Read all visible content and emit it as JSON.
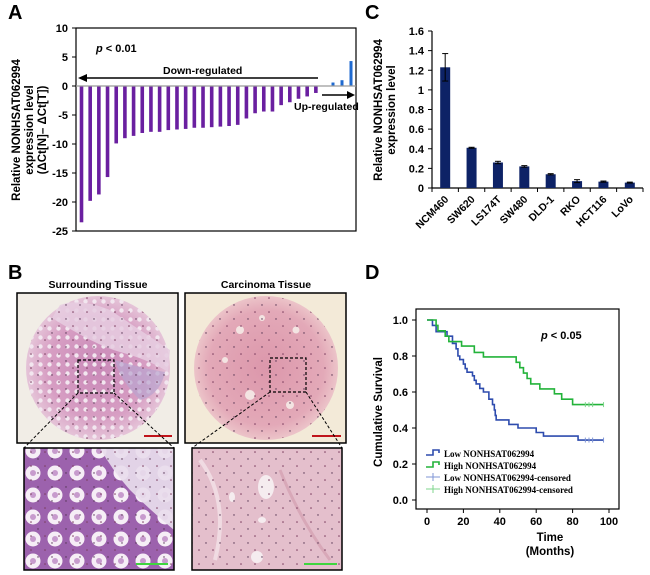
{
  "panels": {
    "A": {
      "letter": "A"
    },
    "B": {
      "letter": "B",
      "left_title": "Surrounding Tissue",
      "right_title": "Carcinoma Tissue"
    },
    "C": {
      "letter": "C"
    },
    "D": {
      "letter": "D"
    }
  },
  "colors": {
    "down_bar": "#6a1fa0",
    "up_bar": "#1f6ad0",
    "cell_bar": "#0d2266",
    "low_curve": "#2e4cae",
    "high_curve": "#23b33a",
    "low_censored": "#7f95d6",
    "high_censored": "#7fd68c",
    "scale_bar_red": "#c0141b",
    "scale_bar_green": "#3fd53f"
  },
  "chart_data": [
    {
      "id": "A",
      "type": "bar",
      "title": "",
      "ylabel_lines": [
        "Relative NONHSAT062994",
        "expression level",
        "(ΔCt[N]– ΔCt[T])"
      ],
      "xlabel": "",
      "ylim": [
        -25,
        10
      ],
      "yticks": [
        10,
        5,
        0,
        -5,
        -10,
        -15,
        -20,
        -25
      ],
      "annotation_p": "p < 0.01",
      "annotation_down": "Down-regulated",
      "annotation_up": "Up-regulated",
      "series": [
        {
          "name": "Down-regulated",
          "values": [
            -23.5,
            -19.8,
            -18.7,
            -15.7,
            -9.9,
            -9.0,
            -8.6,
            -8.1,
            -7.9,
            -7.9,
            -7.6,
            -7.5,
            -7.4,
            -7.2,
            -7.2,
            -7.1,
            -7.0,
            -6.9,
            -6.7,
            -5.6,
            -4.7,
            -4.4,
            -4.4,
            -3.3,
            -2.8,
            -2.2,
            -1.8,
            -1.2
          ]
        },
        {
          "name": "Up-regulated",
          "values": [
            0.6,
            1.0,
            4.3
          ]
        }
      ]
    },
    {
      "id": "C",
      "type": "bar",
      "title": "",
      "ylabel_lines": [
        "Relative NONHSAT062994",
        "expression level"
      ],
      "xlabel": "",
      "ylim": [
        0,
        1.6
      ],
      "yticks": [
        0,
        0.2,
        0.4,
        0.6,
        0.8,
        1,
        1.2,
        1.4,
        1.6
      ],
      "ytick_labels": [
        "0",
        "0.2",
        "0.4",
        "0.6",
        "0.8",
        "1",
        "1.2",
        "1.4",
        "1.6"
      ],
      "categories": [
        "NCM460",
        "SW620",
        "LS174T",
        "SW480",
        "DLD-1",
        "RKO",
        "HCT116",
        "LoVo"
      ],
      "values": [
        1.23,
        0.41,
        0.26,
        0.22,
        0.14,
        0.07,
        0.065,
        0.055
      ],
      "errors": [
        0.14,
        0.005,
        0.012,
        0.008,
        0.006,
        0.015,
        0.006,
        0.005
      ]
    },
    {
      "id": "D",
      "type": "line",
      "subtype": "kaplan-meier",
      "title": "",
      "ylabel": "Cumulative Survival",
      "xlabel_lines": [
        "Time",
        "(Months)"
      ],
      "xlim": [
        0,
        100
      ],
      "ylim": [
        0,
        1.0
      ],
      "xticks": [
        0,
        20,
        40,
        60,
        80,
        100
      ],
      "yticks": [
        0.0,
        0.2,
        0.4,
        0.6,
        0.8,
        1.0
      ],
      "ytick_labels": [
        "0.0",
        "0.2",
        "0.4",
        "0.6",
        "0.8",
        "1.0"
      ],
      "annotation_p": "p < 0.05",
      "legend_position": "bottom-left",
      "legend": [
        "Low NONHSAT062994",
        "High NONHSAT062994",
        "Low NONHSAT062994-censored",
        "High NONHSAT062994-censored"
      ],
      "series": [
        {
          "name": "Low NONHSAT062994",
          "steps": [
            [
              0,
              1.0
            ],
            [
              3,
              0.97
            ],
            [
              5,
              0.935
            ],
            [
              11,
              0.91
            ],
            [
              14,
              0.87
            ],
            [
              16,
              0.84
            ],
            [
              17,
              0.8
            ],
            [
              18,
              0.78
            ],
            [
              20,
              0.755
            ],
            [
              21,
              0.73
            ],
            [
              22,
              0.71
            ],
            [
              25,
              0.69
            ],
            [
              26,
              0.665
            ],
            [
              27,
              0.645
            ],
            [
              29,
              0.62
            ],
            [
              31,
              0.6
            ],
            [
              34,
              0.56
            ],
            [
              36,
              0.53
            ],
            [
              37,
              0.5
            ],
            [
              37.5,
              0.47
            ],
            [
              38,
              0.445
            ],
            [
              45,
              0.42
            ],
            [
              50,
              0.4
            ],
            [
              60,
              0.375
            ],
            [
              64,
              0.355
            ],
            [
              83,
              0.333
            ],
            [
              97,
              0.333
            ]
          ],
          "censored": [
            87,
            89,
            91,
            97
          ]
        },
        {
          "name": "High NONHSAT062994",
          "steps": [
            [
              0,
              1.0
            ],
            [
              5,
              0.97
            ],
            [
              6,
              0.94
            ],
            [
              10,
              0.91
            ],
            [
              12,
              0.88
            ],
            [
              19,
              0.855
            ],
            [
              26,
              0.82
            ],
            [
              31,
              0.795
            ],
            [
              49,
              0.765
            ],
            [
              51,
              0.735
            ],
            [
              53,
              0.705
            ],
            [
              55,
              0.675
            ],
            [
              57,
              0.645
            ],
            [
              62,
              0.617
            ],
            [
              70,
              0.59
            ],
            [
              74,
              0.56
            ],
            [
              80,
              0.53
            ],
            [
              97,
              0.53
            ]
          ],
          "censored": [
            87,
            89,
            91,
            97
          ]
        }
      ]
    }
  ]
}
